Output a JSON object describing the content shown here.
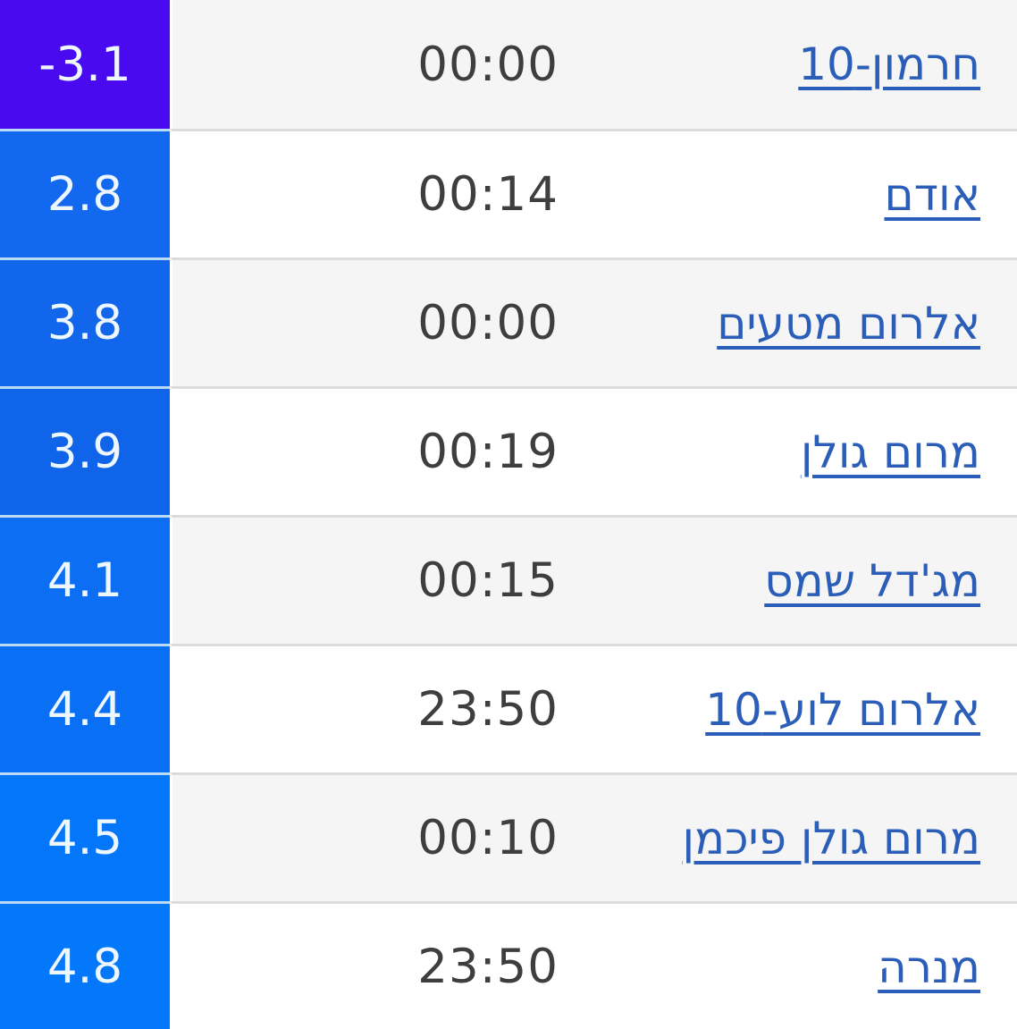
{
  "palette": {
    "link_color": "#2b5eb8",
    "time_text": "#3e3e3e",
    "temp_text": "#eef7ff",
    "row_bg": "#ffffff",
    "row_alt_bg": "#f5f5f5",
    "separator_gray": "#dcdcdc",
    "separator_blue": "#badaf3",
    "coldest_cell_color": "#4a0af0",
    "warm_cell_color": "#0378fb"
  },
  "table": {
    "columns": [
      "temperature",
      "time",
      "station"
    ],
    "rows": [
      {
        "temp": "-3.1",
        "time": "00:00",
        "station": "חרמון-10",
        "temp_color": "#4a0af0"
      },
      {
        "temp": "2.8",
        "time": "00:14",
        "station": "אודם",
        "temp_color": "#1368f0"
      },
      {
        "temp": "3.8",
        "time": "00:00",
        "station": "אלרום מטעים",
        "temp_color": "#1166ec"
      },
      {
        "temp": "3.9",
        "time": "00:19",
        "station": "מרום גולן",
        "temp_color": "#1064e9"
      },
      {
        "temp": "4.1",
        "time": "00:15",
        "station": "מג'דל שמס",
        "temp_color": "#0c6ef3"
      },
      {
        "temp": "4.4",
        "time": "23:50",
        "station": "אלרום לוע-10",
        "temp_color": "#0970f5"
      },
      {
        "temp": "4.5",
        "time": "00:10",
        "station": "מרום גולן פיכמן",
        "temp_color": "#0476f9"
      },
      {
        "temp": "4.8",
        "time": "23:50",
        "station": "מנרה",
        "temp_color": "#0378fb"
      }
    ]
  }
}
